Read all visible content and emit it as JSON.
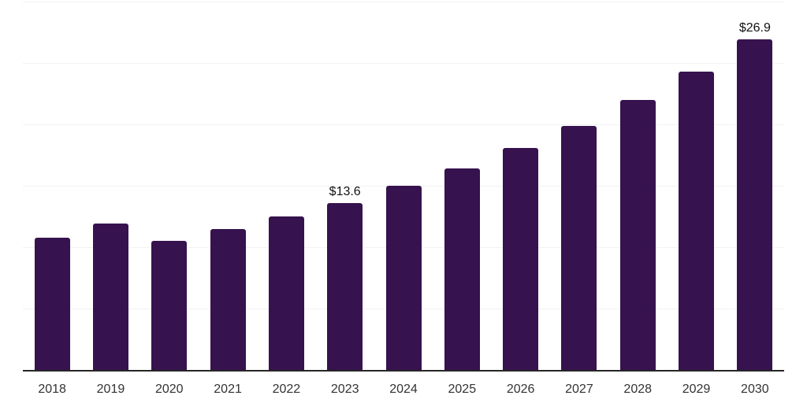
{
  "chart_data": {
    "type": "bar",
    "title": "",
    "xlabel": "",
    "ylabel": "",
    "categories": [
      "2018",
      "2019",
      "2020",
      "2021",
      "2022",
      "2023",
      "2024",
      "2025",
      "2026",
      "2027",
      "2028",
      "2029",
      "2030"
    ],
    "values": [
      10.8,
      11.9,
      10.5,
      11.5,
      12.5,
      13.6,
      15.0,
      16.4,
      18.1,
      19.9,
      22.0,
      24.3,
      26.9
    ],
    "value_labels": [
      {
        "category": "2023",
        "text": "$13.6"
      },
      {
        "category": "2030",
        "text": "$26.9"
      }
    ],
    "ylim": [
      0,
      30
    ],
    "gridline_values": [
      5,
      10,
      15,
      20,
      25,
      30
    ],
    "grid_on": true,
    "legend": "none",
    "colors": {
      "bar": "#36124E",
      "grid": "#f2f2f2",
      "axis_line": "#262626",
      "tick_label": "#333333",
      "value_label": "#111111",
      "background": "#ffffff"
    }
  }
}
